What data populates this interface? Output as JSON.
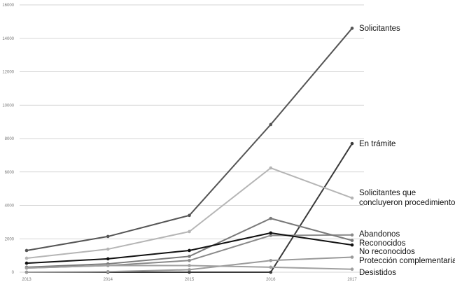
{
  "chart_data": {
    "type": "line",
    "title": "",
    "xlabel": "",
    "ylabel": "",
    "x": [
      "2013",
      "2014",
      "2015",
      "2016",
      "2017"
    ],
    "ylim": [
      0,
      16000
    ],
    "yticks": [
      "0",
      "2000",
      "4000",
      "6000",
      "8000",
      "10000",
      "12000",
      "14000",
      "16000"
    ],
    "grid": true,
    "legend": "inline labels at line ends (right)",
    "series": [
      {
        "name": "Solicitantes",
        "values": [
          1300,
          2140,
          3400,
          8840,
          14600
        ],
        "color": "#555555",
        "label_lines": [
          "Solicitantes"
        ]
      },
      {
        "name": "En trámite",
        "values": [
          0,
          0,
          0,
          0,
          7700
        ],
        "color": "#3a3a3a",
        "label_lines": [
          "En trámite"
        ]
      },
      {
        "name": "Solicitantes que concluyeron procedimiento",
        "values": [
          840,
          1380,
          2430,
          6240,
          4440
        ],
        "color": "#b5b5b5",
        "label_lines": [
          "Solicitantes que",
          "concluyeron procedimiento"
        ]
      },
      {
        "name": "Abandonos",
        "values": [
          250,
          400,
          700,
          2200,
          2230
        ],
        "color": "#8a8a8a",
        "label_lines": [
          "Abandonos"
        ]
      },
      {
        "name": "Reconocidos",
        "values": [
          300,
          500,
          950,
          3220,
          1900
        ],
        "color": "#7a7a7a",
        "label_lines": [
          "Reconocidos"
        ]
      },
      {
        "name": "No reconocidos",
        "values": [
          540,
          800,
          1300,
          2350,
          1630
        ],
        "color": "#111111",
        "label_lines": [
          "No reconocidos"
        ]
      },
      {
        "name": "Protección complementaria",
        "values": [
          0,
          30,
          150,
          700,
          900
        ],
        "color": "#9a9a9a",
        "label_lines": [
          "Protección complementaria"
        ]
      },
      {
        "name": "Desistidos",
        "values": [
          250,
          400,
          400,
          300,
          180
        ],
        "color": "#a0a0a0",
        "label_lines": [
          "Desistidos"
        ]
      }
    ]
  }
}
